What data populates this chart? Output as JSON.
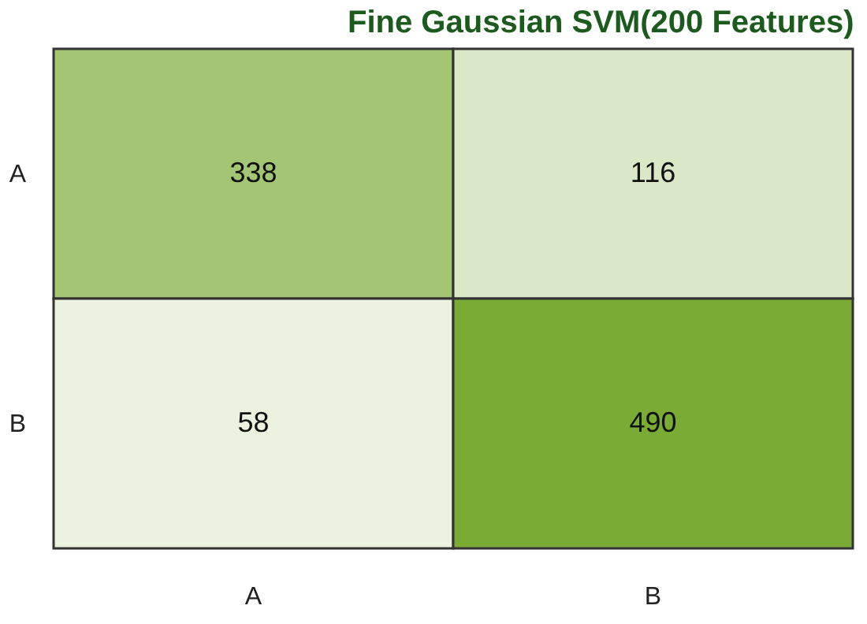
{
  "chart_data": {
    "type": "heatmap",
    "title": "Fine Gaussian SVM(200 Features)",
    "data_labels": true,
    "categories": [
      "A",
      "B"
    ],
    "y_categories": [
      "A",
      "B"
    ],
    "cells": [
      [
        338,
        116
      ],
      [
        58,
        490
      ]
    ],
    "colors": [
      [
        "#a3c574",
        "#dbe8c8"
      ],
      [
        "#ebf2e0",
        "#7aab35"
      ]
    ]
  }
}
